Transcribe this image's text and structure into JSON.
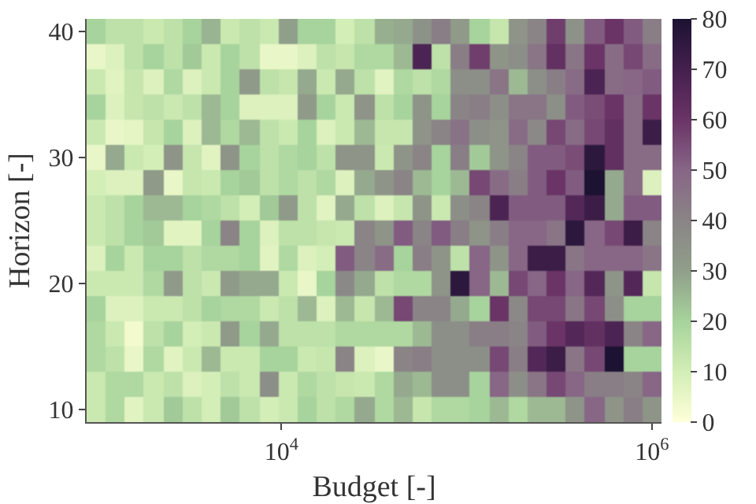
{
  "chart_data": {
    "type": "heatmap",
    "xlabel": "Budget [-]",
    "ylabel": "Horizon [-]",
    "x": [
      1000,
      1269,
      1610,
      2043,
      2593,
      3290,
      4175,
      5298,
      6723,
      8532,
      10826,
      13738,
      17433,
      22122,
      28072,
      35622,
      45204,
      57362,
      72790,
      92367,
      117210,
      148735,
      188739,
      239503,
      303920,
      385662,
      489390,
      621017,
      788046,
      1000000
    ],
    "y": [
      40,
      38,
      36,
      34,
      32,
      30,
      28,
      26,
      24,
      22,
      20,
      18,
      16,
      14,
      12,
      10
    ],
    "log": "x",
    "xlim": [
      888,
      1127000
    ],
    "xticks": [
      {
        "value": 10000,
        "label": "10$^{4}$"
      },
      {
        "value": 1000000,
        "label": "10$^{6}$"
      }
    ],
    "ylim": [
      9,
      41
    ],
    "yticks": [
      10,
      20,
      30,
      40
    ],
    "clim": [
      0,
      80
    ],
    "cticks": [
      0,
      10,
      20,
      30,
      40,
      50,
      60,
      70,
      80
    ],
    "cells": [
      [
        20,
        15,
        15,
        12,
        15,
        20,
        26,
        12,
        15,
        12,
        30,
        20,
        20,
        10,
        15,
        27,
        28,
        35,
        42,
        32,
        20,
        13,
        34,
        40,
        58,
        35,
        52,
        60,
        52,
        42
      ],
      [
        5,
        8,
        15,
        20,
        15,
        22,
        12,
        20,
        15,
        5,
        5,
        8,
        15,
        13,
        18,
        18,
        25,
        68,
        15,
        42,
        58,
        34,
        36,
        45,
        62,
        45,
        60,
        48,
        56,
        48
      ],
      [
        12,
        7,
        13,
        8,
        18,
        8,
        12,
        20,
        32,
        15,
        13,
        28,
        12,
        28,
        15,
        7,
        18,
        15,
        18,
        36,
        36,
        45,
        25,
        36,
        42,
        48,
        68,
        48,
        50,
        52
      ],
      [
        20,
        8,
        13,
        15,
        12,
        15,
        25,
        20,
        8,
        8,
        8,
        32,
        20,
        12,
        34,
        15,
        20,
        34,
        20,
        40,
        42,
        36,
        45,
        45,
        36,
        52,
        55,
        60,
        48,
        60
      ],
      [
        12,
        5,
        6,
        13,
        20,
        8,
        25,
        18,
        25,
        15,
        12,
        20,
        8,
        12,
        25,
        13,
        13,
        34,
        40,
        46,
        36,
        34,
        48,
        38,
        56,
        48,
        56,
        62,
        48,
        72
      ],
      [
        5,
        28,
        12,
        10,
        34,
        13,
        7,
        34,
        20,
        15,
        18,
        20,
        15,
        34,
        34,
        12,
        34,
        40,
        20,
        42,
        22,
        34,
        40,
        52,
        52,
        55,
        76,
        62,
        48,
        48
      ],
      [
        10,
        8,
        8,
        32,
        5,
        13,
        12,
        20,
        22,
        15,
        18,
        15,
        18,
        8,
        28,
        34,
        40,
        25,
        20,
        25,
        56,
        48,
        42,
        52,
        60,
        52,
        80,
        28,
        48,
        8
      ],
      [
        12,
        15,
        20,
        25,
        25,
        20,
        18,
        15,
        10,
        22,
        32,
        15,
        7,
        28,
        15,
        8,
        13,
        34,
        12,
        36,
        40,
        68,
        52,
        52,
        52,
        66,
        72,
        28,
        52,
        52
      ],
      [
        12,
        15,
        20,
        22,
        7,
        7,
        20,
        40,
        20,
        8,
        15,
        15,
        13,
        12,
        40,
        34,
        52,
        40,
        52,
        42,
        34,
        42,
        50,
        50,
        45,
        76,
        50,
        56,
        72,
        40
      ],
      [
        8,
        20,
        12,
        20,
        20,
        15,
        18,
        18,
        20,
        7,
        18,
        8,
        10,
        52,
        40,
        48,
        20,
        42,
        34,
        15,
        50,
        34,
        50,
        72,
        72,
        45,
        50,
        50,
        50,
        45
      ],
      [
        12,
        12,
        12,
        18,
        32,
        15,
        12,
        32,
        28,
        28,
        12,
        5,
        20,
        38,
        28,
        15,
        18,
        18,
        34,
        76,
        50,
        25,
        56,
        50,
        60,
        50,
        66,
        34,
        66,
        13
      ],
      [
        20,
        8,
        8,
        12,
        12,
        15,
        20,
        18,
        18,
        12,
        15,
        25,
        8,
        25,
        13,
        25,
        56,
        40,
        40,
        28,
        20,
        60,
        38,
        56,
        56,
        45,
        56,
        36,
        20,
        20
      ],
      [
        18,
        12,
        3,
        15,
        20,
        10,
        12,
        32,
        20,
        28,
        15,
        15,
        15,
        18,
        18,
        18,
        18,
        25,
        36,
        36,
        42,
        42,
        40,
        52,
        60,
        66,
        62,
        68,
        40,
        50
      ],
      [
        18,
        15,
        5,
        18,
        7,
        12,
        25,
        12,
        12,
        20,
        20,
        12,
        13,
        40,
        8,
        5,
        40,
        42,
        36,
        36,
        36,
        56,
        42,
        66,
        72,
        45,
        56,
        80,
        20,
        20
      ],
      [
        12,
        18,
        18,
        12,
        15,
        8,
        10,
        15,
        12,
        36,
        12,
        18,
        15,
        13,
        12,
        18,
        28,
        25,
        36,
        36,
        20,
        50,
        36,
        45,
        56,
        50,
        42,
        42,
        40,
        50
      ],
      [
        12,
        18,
        7,
        12,
        22,
        15,
        10,
        22,
        15,
        10,
        12,
        20,
        15,
        18,
        28,
        18,
        25,
        13,
        18,
        18,
        20,
        25,
        18,
        25,
        25,
        34,
        50,
        34,
        42,
        34
      ]
    ]
  }
}
